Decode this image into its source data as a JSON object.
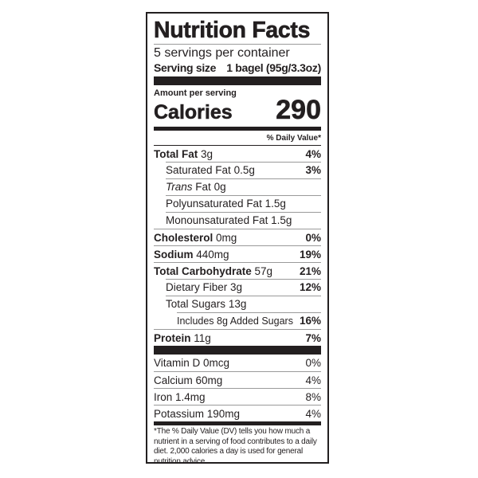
{
  "title": "Nutrition Facts",
  "servings": "5 servings per container",
  "serving_size": {
    "label": "Serving size",
    "value": "1 bagel (95g/3.3oz)"
  },
  "amount_per_serving": "Amount per serving",
  "calories": {
    "label": "Calories",
    "value": "290"
  },
  "daily_value_header": "% Daily Value*",
  "nutrients": [
    {
      "name": "Total Fat",
      "amount": "3g",
      "dv": "4%"
    },
    {
      "name": "Saturated Fat",
      "amount": "0.5g",
      "dv": "3%"
    },
    {
      "name": "Trans",
      "name2": "Fat",
      "amount": "0g",
      "dv": ""
    },
    {
      "name": "Polyunsaturated Fat",
      "amount": "1.5g",
      "dv": ""
    },
    {
      "name": "Monounsaturated Fat",
      "amount": "1.5g",
      "dv": ""
    },
    {
      "name": "Cholesterol",
      "amount": "0mg",
      "dv": "0%"
    },
    {
      "name": "Sodium",
      "amount": "440mg",
      "dv": "19%"
    },
    {
      "name": "Total Carbohydrate",
      "amount": "57g",
      "dv": "21%"
    },
    {
      "name": "Dietary Fiber",
      "amount": "3g",
      "dv": "12%"
    },
    {
      "name": "Total Sugars",
      "amount": "13g",
      "dv": ""
    },
    {
      "name": "Includes 8g Added Sugars",
      "amount": "",
      "dv": "16%"
    },
    {
      "name": "Protein",
      "amount": "11g",
      "dv": "7%"
    }
  ],
  "vitamins": [
    {
      "name": "Vitamin D 0mcg",
      "dv": "0%"
    },
    {
      "name": "Calcium 60mg",
      "dv": "4%"
    },
    {
      "name": "Iron 1.4mg",
      "dv": "8%"
    },
    {
      "name": "Potassium 190mg",
      "dv": "4%"
    }
  ],
  "footnote": "*The % Daily Value (DV) tells you how much a nutrient in a serving of food contributes to a daily diet. 2,000 calories a day is used for general nutrition advice."
}
